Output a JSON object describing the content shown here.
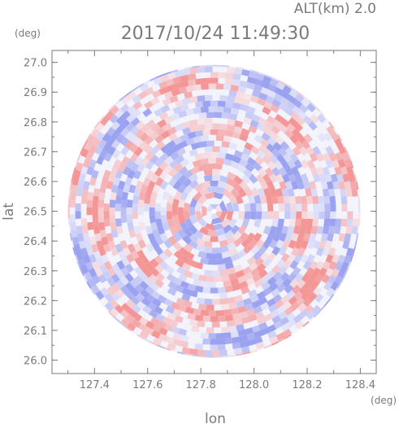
{
  "chart_data": {
    "type": "heatmap",
    "title": "2017/10/24 11:49:30",
    "subtitle": "ALT(km) 2.0",
    "xlabel": "lon",
    "ylabel": "lat",
    "x_unit": "(deg)",
    "y_unit": "(deg)",
    "xlim": [
      127.24,
      128.46
    ],
    "ylim": [
      25.955,
      27.04
    ],
    "x_ticks": [
      "127.4",
      "127.6",
      "127.8",
      "128.0",
      "128.2",
      "128.4"
    ],
    "y_ticks": [
      "26.0",
      "26.1",
      "26.2",
      "26.3",
      "26.4",
      "26.5",
      "26.6",
      "26.7",
      "26.8",
      "26.9",
      "27.0"
    ],
    "radar_center": {
      "lon": 127.85,
      "lat": 26.5
    },
    "radar_radius_deg": 0.55,
    "grid": false,
    "colors": {
      "positive": "#f4a6a6",
      "negative": "#a8aef2",
      "neutral": "#f3f3fb",
      "axis": "#7a7a7a"
    }
  }
}
